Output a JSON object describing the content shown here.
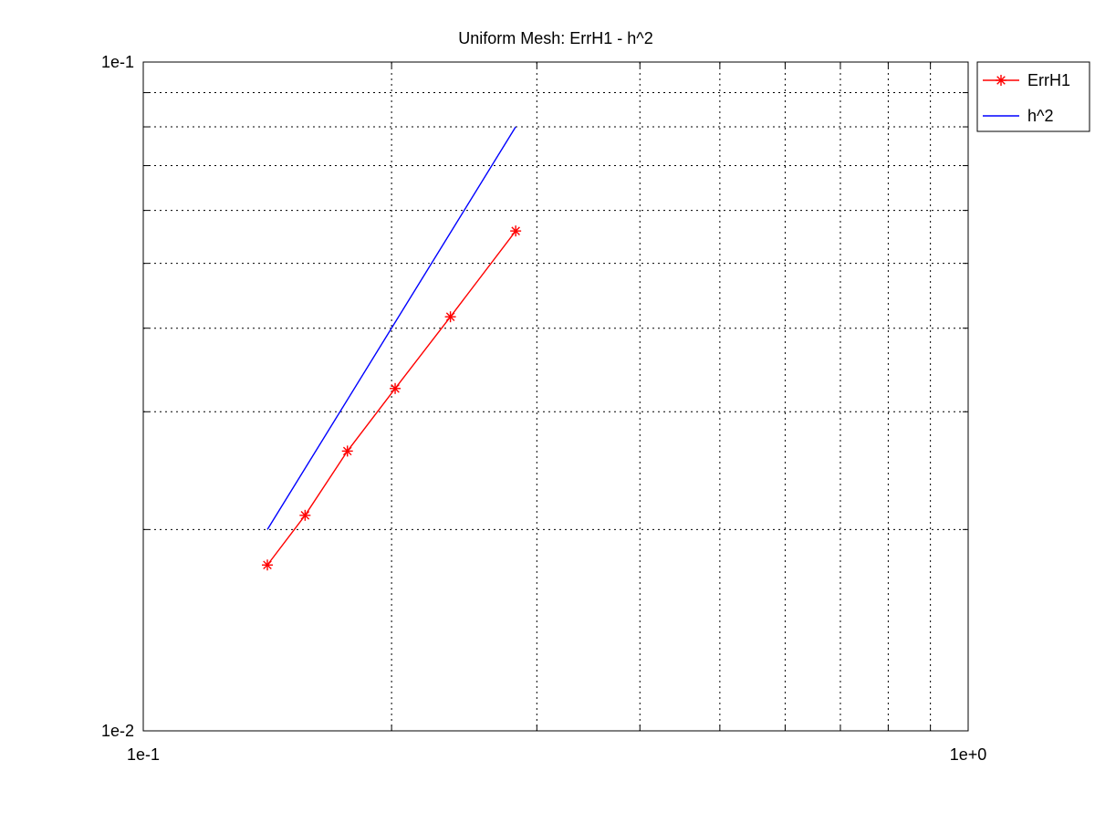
{
  "chart_data": {
    "type": "line",
    "title": "Uniform Mesh: ErrH1 - h^2",
    "xlabel": "",
    "ylabel": "",
    "x_scale": "log",
    "y_scale": "log",
    "xlim": [
      0.1,
      1.0
    ],
    "ylim": [
      0.01,
      0.1
    ],
    "x_ticks": [
      {
        "value": 0.1,
        "label": "1e-1"
      },
      {
        "value": 1.0,
        "label": "1e+0"
      }
    ],
    "y_ticks": [
      {
        "value": 0.01,
        "label": "1e-2"
      },
      {
        "value": 0.1,
        "label": "1e-1"
      }
    ],
    "grid": true,
    "legend_position": "outside-top-right",
    "series": [
      {
        "name": "ErrH1",
        "color": "#ff0000",
        "marker": "asterisk",
        "x": [
          0.1414,
          0.1571,
          0.1768,
          0.202,
          0.2357,
          0.2828
        ],
        "y": [
          0.0177,
          0.021,
          0.0262,
          0.0325,
          0.0416,
          0.0559
        ]
      },
      {
        "name": "h^2",
        "color": "#0000ff",
        "marker": "none",
        "x": [
          0.1414,
          0.2828
        ],
        "y": [
          0.02,
          0.08
        ]
      }
    ]
  }
}
